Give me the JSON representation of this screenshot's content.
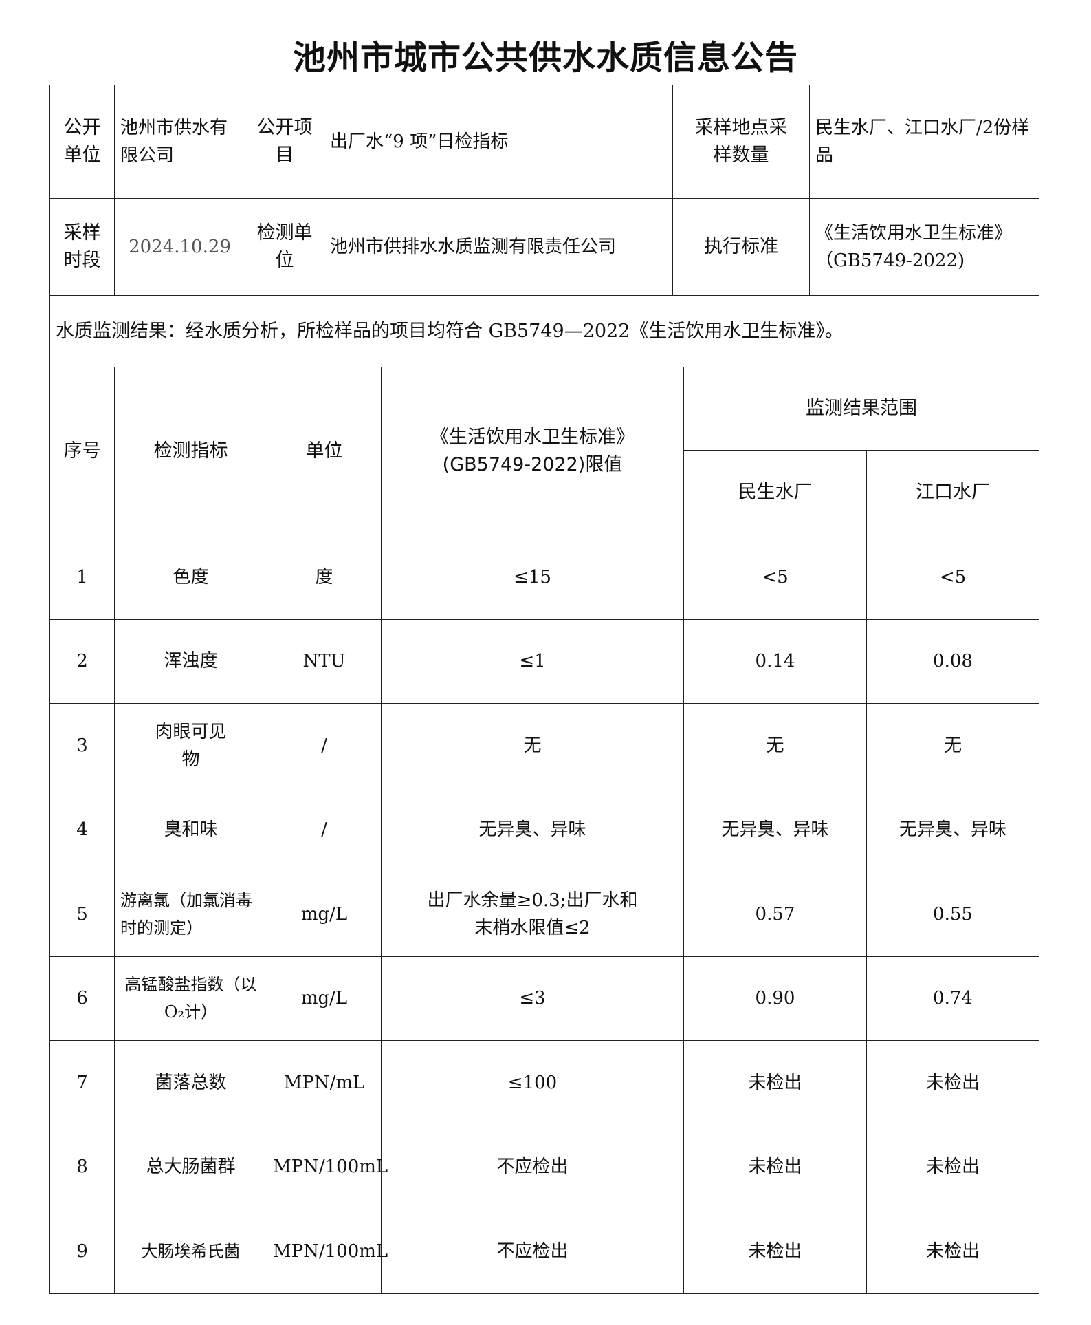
{
  "title": "池州市城市公共供水水质信息公告",
  "info": {
    "unit_label": "公开单位",
    "unit_value": "池州市供水有限公司",
    "item_label": "公开项目",
    "item_value": "出厂水“9 项”日检指标",
    "site_label": "采样地点采样数量",
    "site_value": "民生水厂、江口水厂/2份样品",
    "period_label": "采样时段",
    "period_value": "2024.10.29",
    "lab_label": "检测单位",
    "lab_value": "池州市供排水水质监测有限责任公司",
    "std_label": "执行标准",
    "std_value": "《生活饮用水卫生标准》（GB5749-2022)"
  },
  "conclusion": "水质监测结果：经水质分析，所检样品的项目均符合 GB5749—2022《生活饮用水卫生标准》。",
  "headers": {
    "no": "序号",
    "indicator": "检测指标",
    "unit": "单位",
    "limit": "《生活饮用水卫生标准》(GB5749-2022)限值",
    "range": "监测结果范围",
    "plant1": "民生水厂",
    "plant2": "江口水厂"
  },
  "rows": [
    {
      "no": "1",
      "indicator": "色度",
      "unit": "度",
      "limit": "≤15",
      "p1": "<5",
      "p2": "<5"
    },
    {
      "no": "2",
      "indicator": "浑浊度",
      "unit": "NTU",
      "limit": "≤1",
      "p1": "0.14",
      "p2": "0.08"
    },
    {
      "no": "3",
      "indicator": "肉眼可见物",
      "unit": "/",
      "limit": "无",
      "p1": "无",
      "p2": "无"
    },
    {
      "no": "4",
      "indicator": "臭和味",
      "unit": "/",
      "limit": "无异臭、异味",
      "p1": "无异臭、异味",
      "p2": "无异臭、异味"
    },
    {
      "no": "5",
      "indicator": "游离氯（加氯消毒时的测定）",
      "unit": "mg/L",
      "limit": "出厂水余量≥0.3;出厂水和末梢水限值≤2",
      "p1": "0.57",
      "p2": "0.55"
    },
    {
      "no": "6",
      "indicator": "高锰酸盐指数（以 O₂计）",
      "unit": "mg/L",
      "limit": "≤3",
      "p1": "0.90",
      "p2": "0.74"
    },
    {
      "no": "7",
      "indicator": "菌落总数",
      "unit": "MPN/mL",
      "limit": "≤100",
      "p1": "未检出",
      "p2": "未检出"
    },
    {
      "no": "8",
      "indicator": "总大肠菌群",
      "unit": "MPN/100mL",
      "limit": "不应检出",
      "p1": "未检出",
      "p2": "未检出"
    },
    {
      "no": "9",
      "indicator": "大肠埃希氏菌",
      "unit": "MPN/100mL",
      "limit": "不应检出",
      "p1": "未检出",
      "p2": "未检出"
    }
  ]
}
